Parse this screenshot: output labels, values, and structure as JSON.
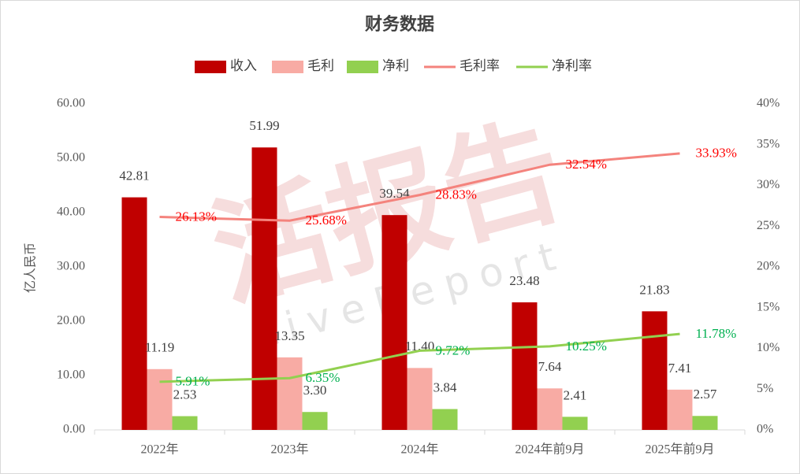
{
  "chart_data": {
    "type": "bar",
    "title": "财务数据",
    "watermark": "活报告",
    "watermark_sub": "LiveReport",
    "y_label": "亿人民币",
    "categories": [
      "2022年",
      "2023年",
      "2024年",
      "2024年前9月",
      "2025年前9月"
    ],
    "ylim": [
      0,
      60
    ],
    "yticks": [
      {
        "value": 0,
        "label": "0.00"
      },
      {
        "value": 10,
        "label": "10.00"
      },
      {
        "value": 20,
        "label": "20.00"
      },
      {
        "value": 30,
        "label": "30.00"
      },
      {
        "value": 40,
        "label": "40.00"
      },
      {
        "value": 50,
        "label": "50.00"
      },
      {
        "value": 60,
        "label": "60.00"
      }
    ],
    "y2lim": [
      0,
      40
    ],
    "y2ticks": [
      {
        "value": 0,
        "label": "0%"
      },
      {
        "value": 5,
        "label": "5%"
      },
      {
        "value": 10,
        "label": "10%"
      },
      {
        "value": 15,
        "label": "15%"
      },
      {
        "value": 20,
        "label": "20%"
      },
      {
        "value": 25,
        "label": "25%"
      },
      {
        "value": 30,
        "label": "30%"
      },
      {
        "value": 35,
        "label": "35%"
      },
      {
        "value": 40,
        "label": "40%"
      }
    ],
    "series": [
      {
        "name": "收入",
        "type": "bar",
        "color": "#c00000",
        "label_color": "#404040",
        "values": [
          42.81,
          51.99,
          39.54,
          23.48,
          21.83
        ],
        "value_labels": [
          "42.81",
          "51.99",
          "39.54",
          "23.48",
          "21.83"
        ]
      },
      {
        "name": "毛利",
        "type": "bar",
        "color": "#f8aba4",
        "label_color": "#404040",
        "values": [
          11.19,
          13.35,
          11.4,
          7.64,
          7.41
        ],
        "value_labels": [
          "11.19",
          "13.35",
          "11.40",
          "7.64",
          "7.41"
        ]
      },
      {
        "name": "净利",
        "type": "bar",
        "color": "#92d050",
        "label_color": "#404040",
        "values": [
          2.53,
          3.3,
          3.84,
          2.41,
          2.57
        ],
        "value_labels": [
          "2.53",
          "3.30",
          "3.84",
          "2.41",
          "2.57"
        ]
      },
      {
        "name": "毛利率",
        "type": "line",
        "axis": "y2",
        "color": "#f4837d",
        "label_color": "#ff0000",
        "values": [
          26.13,
          25.68,
          28.83,
          32.54,
          33.93
        ],
        "value_labels": [
          "26.13%",
          "25.68%",
          "28.83%",
          "32.54%",
          "33.93%"
        ]
      },
      {
        "name": "净利率",
        "type": "line",
        "axis": "y2",
        "color": "#92d050",
        "label_color": "#00b050",
        "values": [
          5.91,
          6.35,
          9.72,
          10.25,
          11.78
        ],
        "value_labels": [
          "5.91%",
          "6.35%",
          "9.72%",
          "10.25%",
          "11.78%"
        ]
      }
    ]
  }
}
